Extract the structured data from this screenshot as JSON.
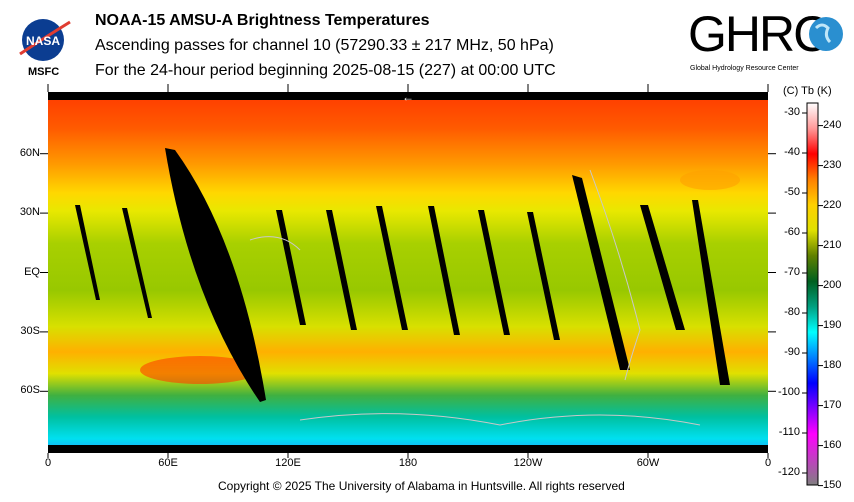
{
  "header": {
    "title": "NOAA-15 AMSU-A Brightness Temperatures",
    "subtitle": "Ascending passes for channel 10 (57290.33 ± 217 MHz, 50 hPa)",
    "period": "For the 24-hour period beginning 2025-08-15 (227) at 00:00 UTC",
    "left_logo": {
      "text": "NASA",
      "caption": "MSFC"
    },
    "right_logo": {
      "text": "GHRC",
      "caption": "Global Hydrology Resource Center"
    }
  },
  "map": {
    "lat_labels": [
      {
        "t": "60N",
        "lat": 60
      },
      {
        "t": "30N",
        "lat": 30
      },
      {
        "t": "EQ",
        "lat": 0
      },
      {
        "t": "30S",
        "lat": -30
      },
      {
        "t": "60S",
        "lat": -60
      }
    ],
    "lon_labels": [
      {
        "t": "0",
        "lon": 0
      },
      {
        "t": "60E",
        "lon": 60
      },
      {
        "t": "120E",
        "lon": 120
      },
      {
        "t": "180",
        "lon": 180
      },
      {
        "t": "120W",
        "lon": 240
      },
      {
        "t": "60W",
        "lon": 300
      },
      {
        "t": "0",
        "lon": 360
      }
    ],
    "direction_arrow": "←"
  },
  "colorbar": {
    "header": "(C)  Tb  (K)",
    "celsius": [
      -30,
      -40,
      -50,
      -60,
      -70,
      -80,
      -90,
      -100,
      -110,
      -120
    ],
    "kelvin": [
      240,
      230,
      220,
      210,
      200,
      190,
      180,
      170,
      160,
      150
    ],
    "colors": [
      "#ffffff",
      "#ff9999",
      "#ff0000",
      "#ff8000",
      "#ffd000",
      "#e0e000",
      "#608000",
      "#006020",
      "#00a080",
      "#00ffff",
      "#0080ff",
      "#0000ff",
      "#8000ff",
      "#ff00ff",
      "#c040c0",
      "#808080"
    ]
  },
  "footer": "Copyright © 2025 The University of Alabama in Huntsville.  All rights reserved"
}
